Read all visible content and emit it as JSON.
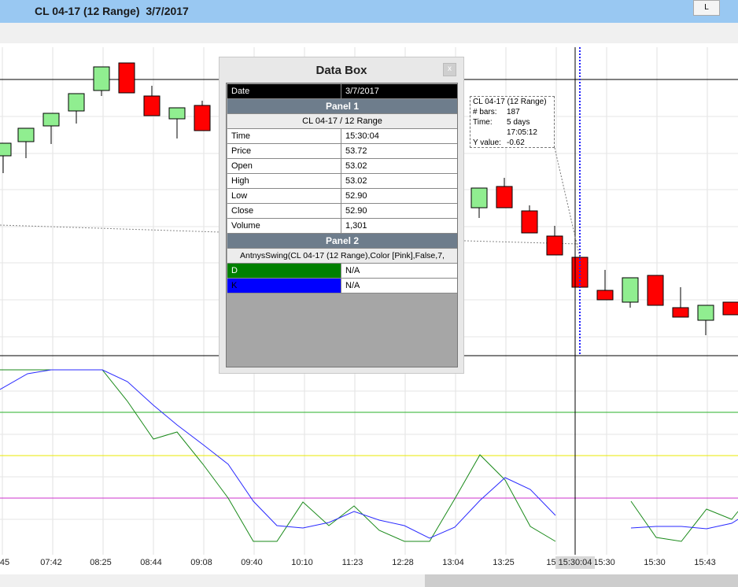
{
  "window": {
    "title": "CL 04-17 (12 Range)  3/7/2017",
    "button": "L"
  },
  "data_box": {
    "title": "Data Box",
    "close": "x",
    "date": [
      "Date",
      "3/7/2017"
    ],
    "panel1": {
      "title": "Panel 1",
      "subtitle": "CL 04-17 / 12 Range",
      "rows": [
        [
          "Time",
          "15:30:04"
        ],
        [
          "Price",
          "53.72"
        ],
        [
          "Open",
          "53.02"
        ],
        [
          "High",
          "53.02"
        ],
        [
          "Low",
          "52.90"
        ],
        [
          "Close",
          "52.90"
        ],
        [
          "Volume",
          "1,301"
        ]
      ]
    },
    "panel2": {
      "title": "Panel 2",
      "subtitle": "AntnysSwing(CL 04-17 (12 Range),Color [Pink],False,7,",
      "rows": [
        [
          "D",
          "N/A"
        ],
        [
          "K",
          "N/A"
        ]
      ]
    }
  },
  "tooltip": {
    "title": "CL 04-17 (12 Range)",
    "bars_label": "# bars:",
    "bars": "187",
    "time_label": "Time:",
    "time": [
      "5 days",
      "17:05:12"
    ],
    "y_label": "Y value:",
    "y": "-0.62"
  },
  "x_axis": {
    "labels": [
      "45",
      "07:42",
      "08:25",
      "08:44",
      "09:08",
      "09:40",
      "10:10",
      "11:23",
      "12:28",
      "13:04",
      "13:25",
      "15:",
      "15:30",
      "15:30",
      "15:43"
    ],
    "cursor_label": "15:30:04"
  }
}
